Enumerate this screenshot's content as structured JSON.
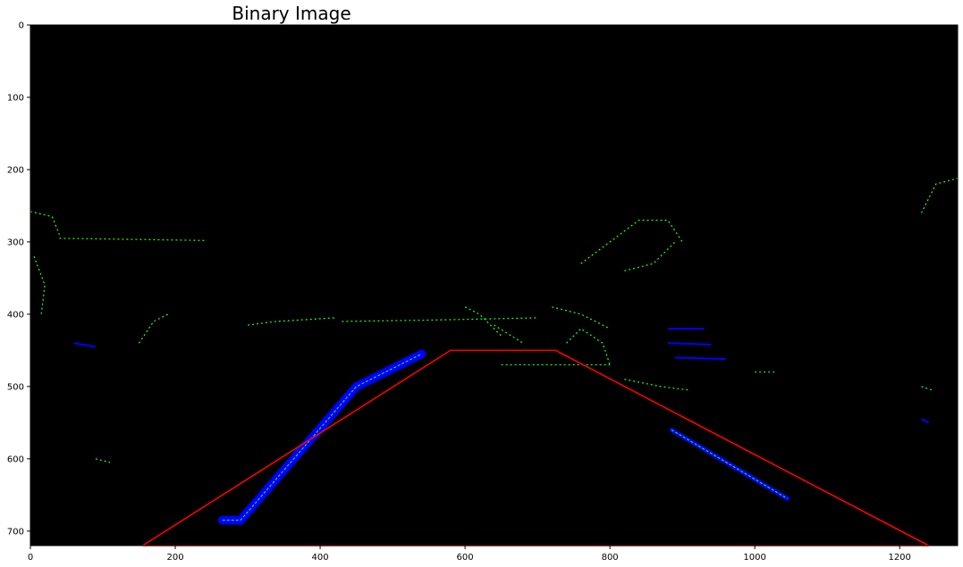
{
  "chart_data": {
    "type": "image",
    "title": "Binary Image",
    "xlim": [
      0,
      1280
    ],
    "ylim": [
      720,
      0
    ],
    "x_ticks": [
      0,
      200,
      400,
      600,
      800,
      1000,
      1200
    ],
    "y_ticks": [
      0,
      100,
      200,
      300,
      400,
      500,
      600,
      700
    ],
    "background_color": "#000000",
    "colors": {
      "region": "#ff0000",
      "edges_green": "#22ff22",
      "edges_blue": "#0000ff"
    },
    "region_polygon": {
      "x": [
        155,
        580,
        725,
        1240,
        155
      ],
      "y": [
        720,
        450,
        450,
        720,
        720
      ]
    },
    "lanes": [
      {
        "name": "",
        "x": [
          265,
          290,
          450,
          540
        ],
        "y": [
          685,
          685,
          500,
          455
        ],
        "width": 12
      },
      {
        "name": "",
        "x": [
          885,
          1045
        ],
        "y": [
          560,
          655
        ],
        "width": 6
      }
    ],
    "noise_strokes": [
      [
        [
          0,
          258
        ],
        [
          30,
          265
        ],
        [
          40,
          290
        ]
      ],
      [
        [
          40,
          295
        ],
        [
          240,
          298
        ]
      ],
      [
        [
          5,
          320
        ],
        [
          20,
          360
        ],
        [
          15,
          400
        ]
      ],
      [
        [
          150,
          440
        ],
        [
          170,
          410
        ],
        [
          190,
          400
        ]
      ],
      [
        [
          300,
          415
        ],
        [
          340,
          410
        ],
        [
          420,
          405
        ]
      ],
      [
        [
          430,
          410
        ],
        [
          560,
          408
        ],
        [
          700,
          405
        ]
      ],
      [
        [
          720,
          390
        ],
        [
          760,
          400
        ],
        [
          800,
          420
        ]
      ],
      [
        [
          740,
          440
        ],
        [
          760,
          420
        ],
        [
          790,
          440
        ],
        [
          800,
          470
        ]
      ],
      [
        [
          760,
          330
        ],
        [
          800,
          300
        ],
        [
          840,
          270
        ],
        [
          880,
          270
        ],
        [
          900,
          300
        ]
      ],
      [
        [
          820,
          340
        ],
        [
          860,
          330
        ],
        [
          890,
          300
        ]
      ],
      [
        [
          640,
          415
        ],
        [
          680,
          440
        ]
      ],
      [
        [
          650,
          470
        ],
        [
          800,
          470
        ]
      ],
      [
        [
          820,
          490
        ],
        [
          870,
          500
        ],
        [
          910,
          505
        ]
      ],
      [
        [
          1000,
          480
        ],
        [
          1030,
          480
        ]
      ],
      [
        [
          1230,
          500
        ],
        [
          1245,
          505
        ]
      ],
      [
        [
          1230,
          260
        ],
        [
          1250,
          220
        ],
        [
          1280,
          212
        ]
      ],
      [
        [
          90,
          600
        ],
        [
          110,
          605
        ]
      ],
      [
        [
          600,
          390
        ],
        [
          620,
          400
        ],
        [
          650,
          430
        ]
      ]
    ],
    "noise_blue": [
      [
        [
          880,
          420
        ],
        [
          930,
          420
        ]
      ],
      [
        [
          880,
          440
        ],
        [
          940,
          442
        ]
      ],
      [
        [
          890,
          460
        ],
        [
          960,
          462
        ]
      ],
      [
        [
          60,
          440
        ],
        [
          90,
          445
        ]
      ],
      [
        [
          1230,
          545
        ],
        [
          1240,
          550
        ]
      ]
    ]
  }
}
